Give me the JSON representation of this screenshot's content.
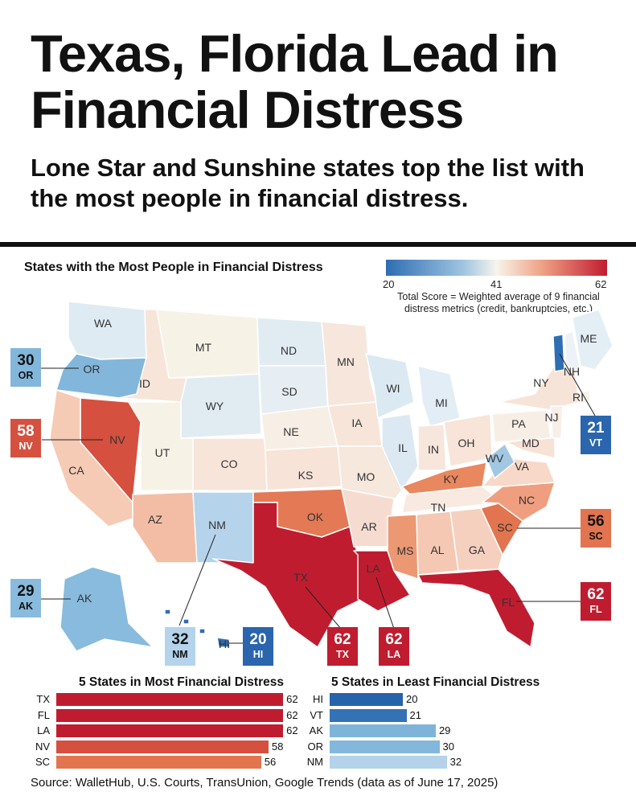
{
  "headline": "Texas, Florida Lead in Financial Distress",
  "subheadline": "Lone Star and Sunshine states top the list with the most people in financial distress.",
  "map_title": "States with the Most People in Financial Distress",
  "legend": {
    "min": "20",
    "mid": "41",
    "max": "62",
    "note": "Total Score = Weighted average of 9 financial distress metrics (credit, bankruptcies, etc.)",
    "colors": [
      "#2e6db3",
      "#9fc5e1",
      "#f7f4ec",
      "#f0a487",
      "#c01c30"
    ]
  },
  "state_labels": [
    "WA",
    "OR",
    "ID",
    "MT",
    "ND",
    "MN",
    "SD",
    "WY",
    "NV",
    "UT",
    "CA",
    "CO",
    "NE",
    "KS",
    "AZ",
    "NM",
    "OK",
    "TX",
    "IA",
    "MO",
    "AR",
    "LA",
    "WI",
    "MI",
    "IL",
    "IN",
    "OH",
    "KY",
    "TN",
    "MS",
    "AL",
    "GA",
    "FL",
    "SC",
    "NC",
    "VA",
    "WV",
    "MD",
    "PA",
    "NY",
    "NJ",
    "RI",
    "NH",
    "ME",
    "AK",
    "HI"
  ],
  "callouts": [
    {
      "state": "OR",
      "score": "30"
    },
    {
      "state": "NV",
      "score": "58"
    },
    {
      "state": "AK",
      "score": "29"
    },
    {
      "state": "NM",
      "score": "32"
    },
    {
      "state": "HI",
      "score": "20"
    },
    {
      "state": "TX",
      "score": "62"
    },
    {
      "state": "LA",
      "score": "62"
    },
    {
      "state": "FL",
      "score": "62"
    },
    {
      "state": "SC",
      "score": "56"
    },
    {
      "state": "VT",
      "score": "21"
    }
  ],
  "source": "Source: WalletHub, U.S. Courts, TransUnion, Google Trends (data as of June 17, 2025)",
  "chart_data": [
    {
      "type": "bar",
      "title": "5 States in Most Financial Distress",
      "categories": [
        "TX",
        "FL",
        "LA",
        "NV",
        "SC"
      ],
      "values": [
        62,
        62,
        62,
        58,
        56
      ],
      "colors": [
        "#c01c30",
        "#c01c30",
        "#c01c30",
        "#d5503f",
        "#e2744f"
      ]
    },
    {
      "type": "bar",
      "title": "5 States in Least Financial Distress",
      "categories": [
        "HI",
        "VT",
        "AK",
        "OR",
        "NM"
      ],
      "values": [
        20,
        21,
        29,
        30,
        32
      ],
      "colors": [
        "#2563ab",
        "#3472b5",
        "#7fb4da",
        "#83b7db",
        "#b4d3eb"
      ]
    }
  ]
}
